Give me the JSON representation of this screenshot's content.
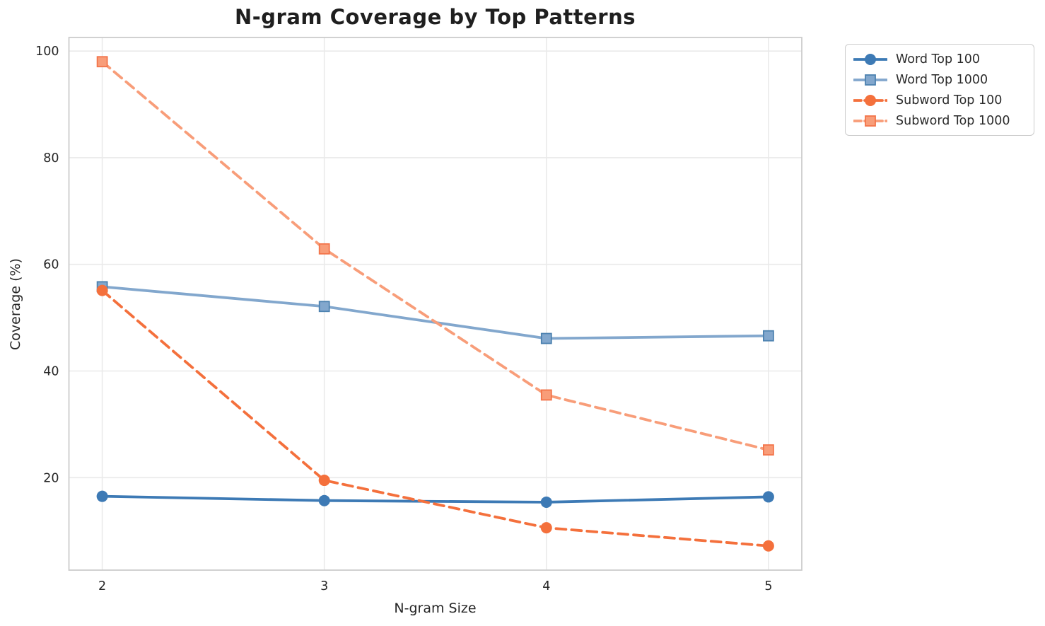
{
  "chart_data": {
    "type": "line",
    "title": "N-gram Coverage by Top Patterns",
    "xlabel": "N-gram Size",
    "ylabel": "Coverage (%)",
    "x": [
      2,
      3,
      4,
      5
    ],
    "x_tick_labels": [
      "2",
      "3",
      "4",
      "5"
    ],
    "y_ticks": [
      20,
      40,
      60,
      80,
      100
    ],
    "xlim": [
      1.85,
      5.15
    ],
    "ylim": [
      2.66,
      102.54
    ],
    "grid": true,
    "legend_position": "outside-top-right",
    "series": [
      {
        "name": "Word Top 100",
        "values": [
          16.5,
          15.7,
          15.4,
          16.4
        ],
        "color": "#3d7ab5",
        "marker": "circle",
        "marker_edge": "#3d7ab5",
        "line_style": "solid"
      },
      {
        "name": "Word Top 1000",
        "values": [
          55.8,
          52.1,
          46.1,
          46.6
        ],
        "color": "#82a7cd",
        "marker": "square",
        "marker_edge": "#4d82b0",
        "line_style": "solid"
      },
      {
        "name": "Subword Top 100",
        "values": [
          55.1,
          19.5,
          10.6,
          7.2
        ],
        "color": "#f4703c",
        "marker": "circle",
        "marker_edge": "#f4703c",
        "line_style": "dashed"
      },
      {
        "name": "Subword Top 1000",
        "values": [
          98.0,
          62.9,
          35.5,
          25.2
        ],
        "color": "#f89d79",
        "marker": "square",
        "marker_edge": "#f3744a",
        "line_style": "dashed"
      }
    ],
    "style": {
      "grid_color": "#eaeaea",
      "spine_color": "#cccccc",
      "text_color": "#262626",
      "background": "#ffffff"
    }
  }
}
